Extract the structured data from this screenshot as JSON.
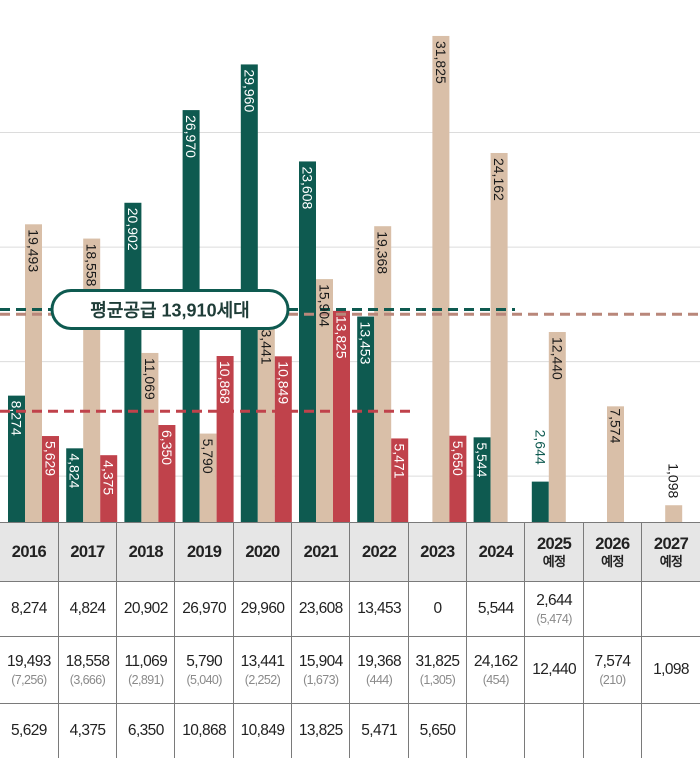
{
  "chart_data": {
    "type": "bar",
    "categories": [
      "2016",
      "2017",
      "2018",
      "2019",
      "2020",
      "2021",
      "2022",
      "2023",
      "2024",
      "2025",
      "2026",
      "2027"
    ],
    "category_sublabels": [
      "",
      "",
      "",
      "",
      "",
      "",
      "",
      "",
      "",
      "예정",
      "예정",
      "예정"
    ],
    "series": [
      {
        "name": "series-green",
        "color": "#0e5a50",
        "values": [
          8274,
          4824,
          20902,
          26970,
          29960,
          23608,
          13453,
          0,
          5544,
          2644,
          null,
          null
        ],
        "labels": [
          "8,274",
          "4,824",
          "20,902",
          "26,970",
          "29,960",
          "23,608",
          "13,453",
          "",
          "5,544",
          "2,644",
          "",
          ""
        ],
        "sub_values": [
          "",
          "",
          "",
          "",
          "",
          "",
          "",
          "",
          "",
          "(5,474)",
          "",
          ""
        ]
      },
      {
        "name": "series-beige",
        "color": "#d9bfa8",
        "values": [
          19493,
          18558,
          11069,
          5790,
          13441,
          15904,
          19368,
          31825,
          24162,
          12440,
          7574,
          1098
        ],
        "labels": [
          "19,493",
          "18,558",
          "11,069",
          "5,790",
          "13,441",
          "15,904",
          "19,368",
          "31,825",
          "24,162",
          "12,440",
          "7,574",
          "1,098"
        ],
        "sub_values": [
          "(7,256)",
          "(3,666)",
          "(2,891)",
          "(5,040)",
          "(2,252)",
          "(1,673)",
          "(444)",
          "(1,305)",
          "(454)",
          "",
          "(210)",
          ""
        ]
      },
      {
        "name": "series-red",
        "color": "#c0424b",
        "values": [
          5629,
          4375,
          6350,
          10868,
          10849,
          13825,
          5471,
          5650,
          null,
          null,
          null,
          null
        ],
        "labels": [
          "5,629",
          "4,375",
          "6,350",
          "10,868",
          "10,849",
          "13,825",
          "5,471",
          "5,650",
          "",
          "",
          "",
          ""
        ],
        "sub_values": [
          "",
          "",
          "",
          "",
          "",
          "",
          "",
          "",
          "",
          "",
          "",
          ""
        ]
      }
    ],
    "table_row1_values": [
      "8,274",
      "4,824",
      "20,902",
      "26,970",
      "29,960",
      "23,608",
      "13,453",
      "0",
      "5,544",
      "2,644",
      "",
      ""
    ],
    "reference_lines": [
      {
        "name": "avg-green",
        "value": 13910,
        "color": "#0e5a50"
      },
      {
        "name": "avg-beige",
        "value": 13600,
        "color": "#b9877a"
      },
      {
        "name": "avg-red",
        "value": 7250,
        "color": "#c0424b"
      }
    ],
    "callout": "평균공급 13,910세대",
    "ylim": [
      0,
      33000
    ],
    "gridlines": [
      3000,
      10500,
      18000,
      25500
    ],
    "grid": true,
    "legend": "none"
  }
}
